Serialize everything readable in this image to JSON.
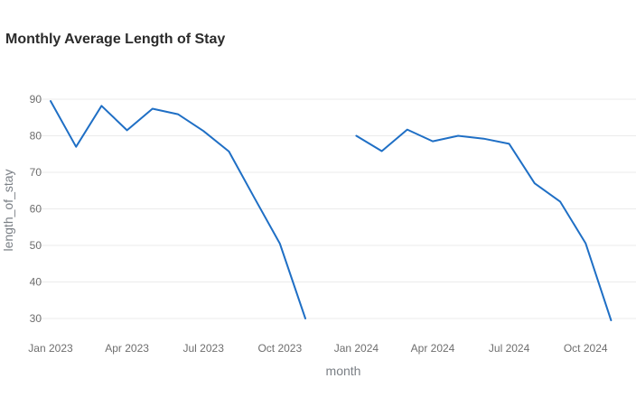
{
  "chart_data": {
    "type": "line",
    "title": "Monthly Average Length of Stay",
    "xlabel": "month",
    "ylabel": "length_of_stay",
    "ylim": [
      25,
      93
    ],
    "y_ticks": [
      30,
      40,
      50,
      60,
      70,
      80,
      90
    ],
    "x_ticks": [
      "Jan 2023",
      "Apr 2023",
      "Jul 2023",
      "Oct 2023",
      "Jan 2024",
      "Apr 2024",
      "Jul 2024",
      "Oct 2024"
    ],
    "grid": true,
    "series": [
      {
        "color": "#1f6fc5",
        "points": [
          {
            "month": "2023-01",
            "value": 89.5
          },
          {
            "month": "2023-02",
            "value": 77.0
          },
          {
            "month": "2023-03",
            "value": 88.2
          },
          {
            "month": "2023-04",
            "value": 81.5
          },
          {
            "month": "2023-05",
            "value": 87.4
          },
          {
            "month": "2023-06",
            "value": 85.9
          },
          {
            "month": "2023-07",
            "value": 81.3
          },
          {
            "month": "2023-08",
            "value": 75.7
          },
          {
            "month": "2023-09",
            "value": 63.0
          },
          {
            "month": "2023-10",
            "value": 50.5
          },
          {
            "month": "2023-11",
            "value": 30.0
          },
          {
            "month": "2023-12",
            "value": null
          },
          {
            "month": "2024-01",
            "value": 80.0
          },
          {
            "month": "2024-02",
            "value": 75.8
          },
          {
            "month": "2024-03",
            "value": 81.7
          },
          {
            "month": "2024-04",
            "value": 78.5
          },
          {
            "month": "2024-05",
            "value": 80.0
          },
          {
            "month": "2024-06",
            "value": 79.2
          },
          {
            "month": "2024-07",
            "value": 77.8
          },
          {
            "month": "2024-08",
            "value": 67.0
          },
          {
            "month": "2024-09",
            "value": 62.0
          },
          {
            "month": "2024-10",
            "value": 50.6
          },
          {
            "month": "2024-11",
            "value": 29.5
          }
        ]
      }
    ]
  }
}
